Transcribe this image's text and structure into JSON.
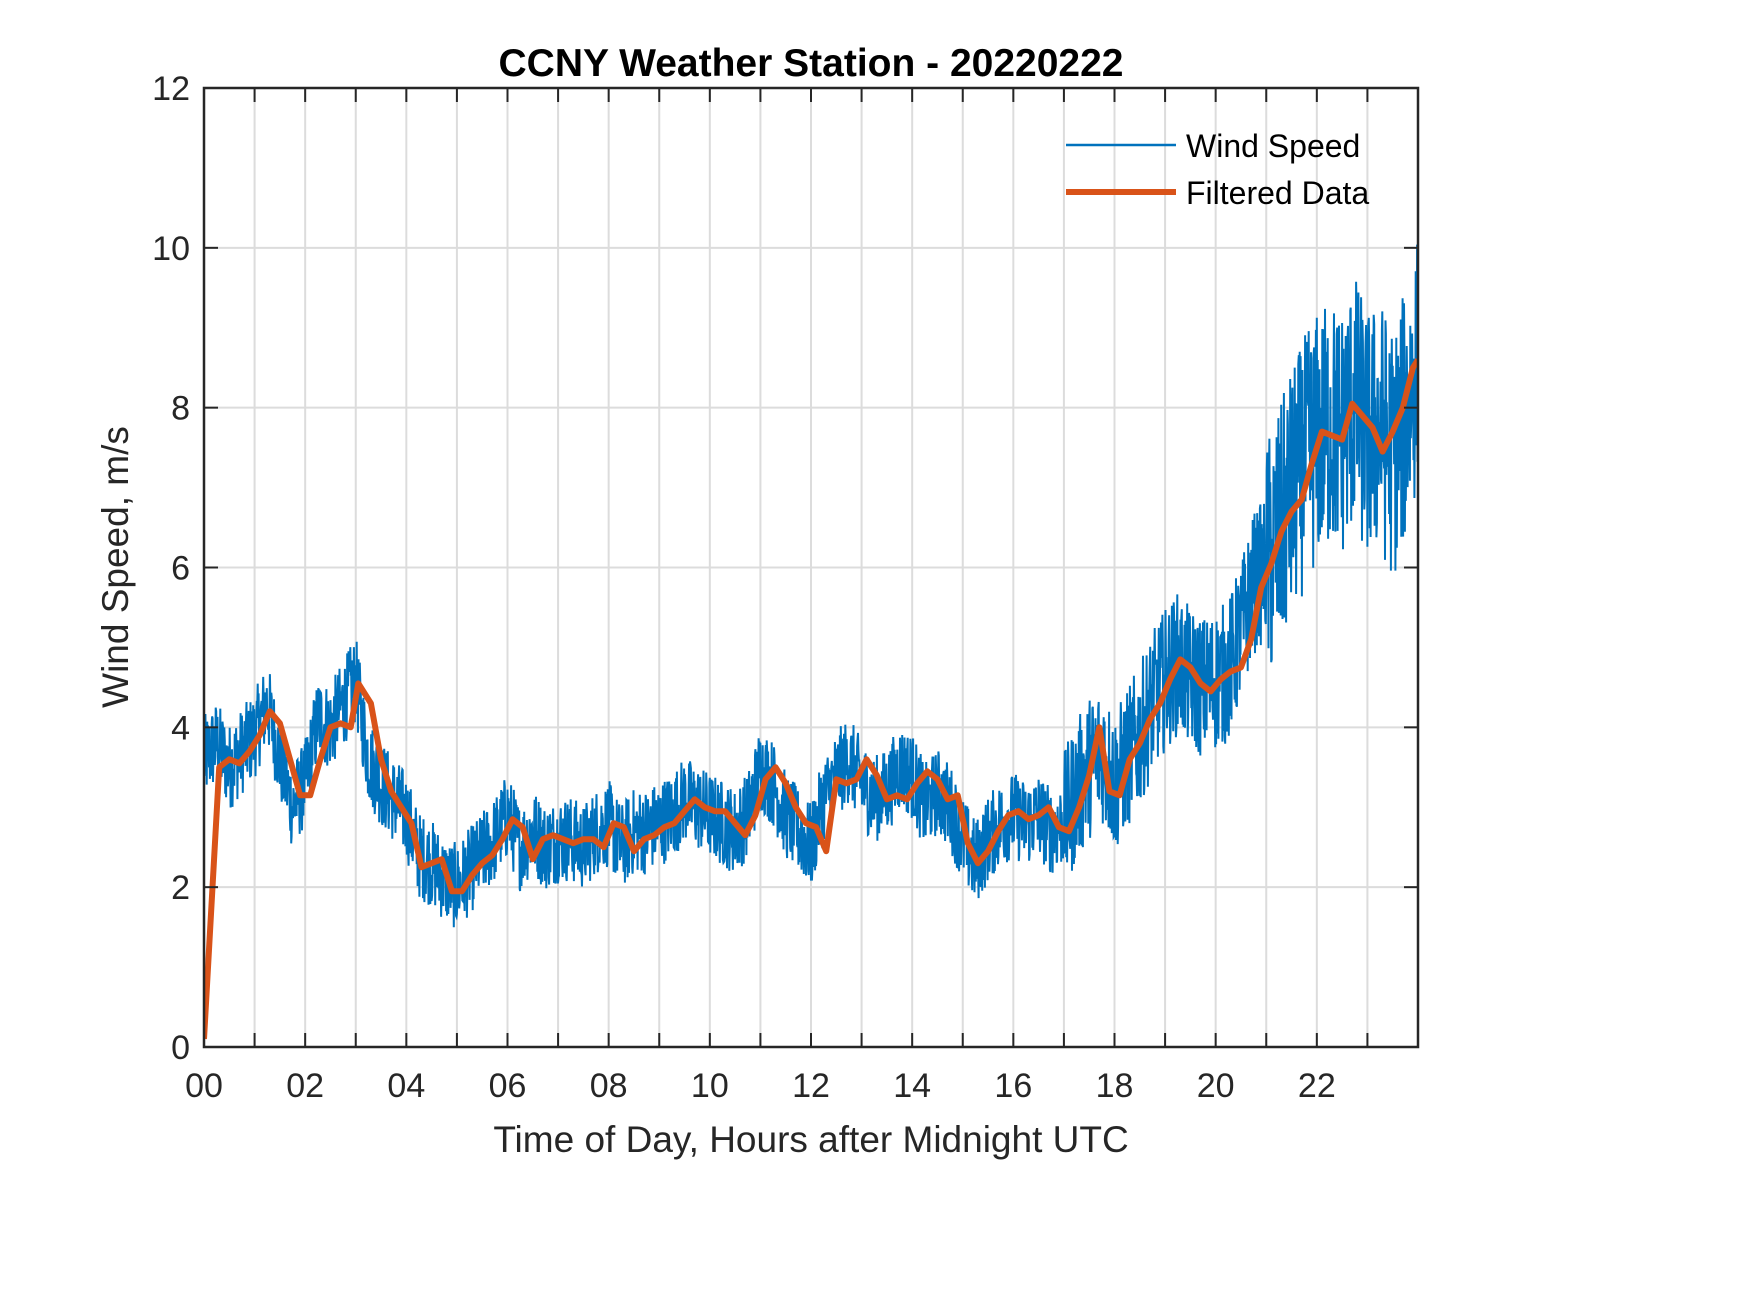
{
  "chart_data": {
    "type": "line",
    "title": "CCNY Weather Station - 20220222",
    "xlabel": "Time of Day, Hours after Midnight UTC",
    "ylabel": "Wind Speed, m/s",
    "xlim": [
      0,
      24
    ],
    "ylim": [
      0,
      12
    ],
    "grid": true,
    "legend_position": "top-right",
    "x_ticks": [
      0,
      2,
      4,
      6,
      8,
      10,
      12,
      14,
      16,
      18,
      20,
      22
    ],
    "x_tick_labels": [
      "00",
      "02",
      "04",
      "06",
      "08",
      "10",
      "12",
      "14",
      "16",
      "18",
      "20",
      "22"
    ],
    "x_minor_grid_step_hours": 1,
    "y_ticks": [
      0,
      2,
      4,
      6,
      8,
      10,
      12
    ],
    "y_tick_labels": [
      "0",
      "2",
      "4",
      "6",
      "8",
      "10",
      "12"
    ],
    "series": [
      {
        "name": "Wind Speed",
        "color": "#0072BD",
        "style": "thin",
        "x": [
          0,
          0.25,
          0.5,
          0.75,
          1,
          1.25,
          1.5,
          1.75,
          2,
          2.25,
          2.5,
          2.75,
          3,
          3.25,
          3.5,
          3.75,
          4,
          4.25,
          4.5,
          4.75,
          5,
          5.25,
          5.5,
          5.75,
          6,
          6.25,
          6.5,
          6.75,
          7,
          7.25,
          7.5,
          7.75,
          8,
          8.25,
          8.5,
          8.75,
          9,
          9.25,
          9.5,
          9.75,
          10,
          10.25,
          10.5,
          10.75,
          11,
          11.25,
          11.5,
          11.75,
          12,
          12.25,
          12.5,
          12.75,
          13,
          13.25,
          13.5,
          13.75,
          14,
          14.25,
          14.5,
          14.75,
          15,
          15.25,
          15.5,
          15.75,
          16,
          16.25,
          16.5,
          16.75,
          17,
          17.25,
          17.5,
          17.75,
          18,
          18.25,
          18.5,
          18.75,
          19,
          19.25,
          19.5,
          19.75,
          20,
          20.25,
          20.5,
          20.75,
          21,
          21.25,
          21.5,
          21.75,
          22,
          22.25,
          22.5,
          22.75,
          23,
          23.25,
          23.5,
          23.75,
          24
        ],
        "values": [
          3.6,
          3.8,
          3.5,
          3.7,
          3.9,
          4.3,
          3.6,
          3.0,
          3.3,
          4.1,
          4.0,
          4.3,
          4.6,
          3.6,
          3.3,
          3.1,
          2.9,
          2.4,
          2.3,
          2.1,
          2.0,
          2.2,
          2.4,
          2.6,
          2.9,
          2.5,
          2.7,
          2.5,
          2.6,
          2.6,
          2.5,
          2.7,
          2.8,
          2.5,
          2.7,
          2.7,
          2.8,
          2.9,
          3.1,
          3.0,
          2.9,
          2.8,
          2.7,
          2.9,
          3.5,
          3.3,
          2.9,
          2.7,
          2.5,
          3.1,
          3.4,
          3.6,
          3.3,
          3.1,
          3.2,
          3.5,
          3.4,
          3.0,
          3.2,
          3.0,
          2.6,
          2.3,
          2.6,
          2.8,
          2.9,
          2.8,
          2.9,
          2.7,
          2.8,
          3.2,
          3.5,
          3.7,
          3.3,
          3.6,
          3.9,
          4.3,
          4.6,
          4.8,
          4.6,
          4.5,
          4.6,
          4.7,
          5.2,
          5.8,
          6.0,
          6.4,
          6.9,
          7.3,
          7.6,
          7.8,
          7.7,
          8.1,
          7.6,
          7.8,
          7.4,
          7.9,
          8.6
        ]
      },
      {
        "name": "Filtered Data",
        "color": "#D95319",
        "style": "thick",
        "x": [
          0,
          0.3,
          0.5,
          0.7,
          0.9,
          1.1,
          1.3,
          1.5,
          1.7,
          1.9,
          2.1,
          2.3,
          2.5,
          2.7,
          2.9,
          3.05,
          3.3,
          3.5,
          3.7,
          3.9,
          4.1,
          4.3,
          4.5,
          4.7,
          4.9,
          5.1,
          5.3,
          5.5,
          5.7,
          5.9,
          6.1,
          6.3,
          6.5,
          6.7,
          6.9,
          7.1,
          7.3,
          7.5,
          7.7,
          7.9,
          8.1,
          8.3,
          8.5,
          8.7,
          8.9,
          9.1,
          9.3,
          9.5,
          9.7,
          9.9,
          10.1,
          10.3,
          10.5,
          10.7,
          10.9,
          11.1,
          11.3,
          11.5,
          11.7,
          11.9,
          12.1,
          12.3,
          12.5,
          12.7,
          12.9,
          13.1,
          13.3,
          13.5,
          13.7,
          13.9,
          14.1,
          14.3,
          14.5,
          14.7,
          14.9,
          15.1,
          15.3,
          15.5,
          15.7,
          15.9,
          16.1,
          16.3,
          16.5,
          16.7,
          16.9,
          17.1,
          17.3,
          17.5,
          17.7,
          17.9,
          18.1,
          18.3,
          18.5,
          18.7,
          18.9,
          19.1,
          19.3,
          19.5,
          19.7,
          19.9,
          20.1,
          20.3,
          20.5,
          20.7,
          20.9,
          21.1,
          21.3,
          21.5,
          21.7,
          21.9,
          22.1,
          22.3,
          22.5,
          22.7,
          22.9,
          23.1,
          23.3,
          23.5,
          23.7,
          23.9,
          24
        ],
        "values": [
          0.1,
          3.5,
          3.6,
          3.55,
          3.7,
          3.9,
          4.2,
          4.05,
          3.6,
          3.15,
          3.15,
          3.6,
          4.0,
          4.05,
          4.0,
          4.55,
          4.3,
          3.6,
          3.2,
          3.0,
          2.8,
          2.25,
          2.3,
          2.35,
          1.95,
          1.95,
          2.15,
          2.3,
          2.4,
          2.6,
          2.85,
          2.75,
          2.35,
          2.6,
          2.65,
          2.6,
          2.55,
          2.6,
          2.6,
          2.5,
          2.8,
          2.75,
          2.45,
          2.6,
          2.65,
          2.75,
          2.8,
          2.95,
          3.1,
          3.0,
          2.95,
          2.95,
          2.8,
          2.65,
          2.9,
          3.35,
          3.5,
          3.3,
          3.0,
          2.8,
          2.75,
          2.45,
          3.35,
          3.3,
          3.35,
          3.6,
          3.4,
          3.1,
          3.15,
          3.1,
          3.3,
          3.45,
          3.35,
          3.1,
          3.15,
          2.55,
          2.3,
          2.45,
          2.7,
          2.9,
          2.95,
          2.85,
          2.9,
          3.0,
          2.75,
          2.7,
          3.0,
          3.4,
          4.0,
          3.2,
          3.15,
          3.6,
          3.8,
          4.1,
          4.3,
          4.6,
          4.85,
          4.75,
          4.55,
          4.45,
          4.6,
          4.7,
          4.75,
          5.1,
          5.75,
          6.05,
          6.45,
          6.7,
          6.85,
          7.3,
          7.7,
          7.65,
          7.6,
          8.05,
          7.9,
          7.75,
          7.45,
          7.7,
          8.0,
          8.5,
          8.6
        ]
      }
    ]
  }
}
